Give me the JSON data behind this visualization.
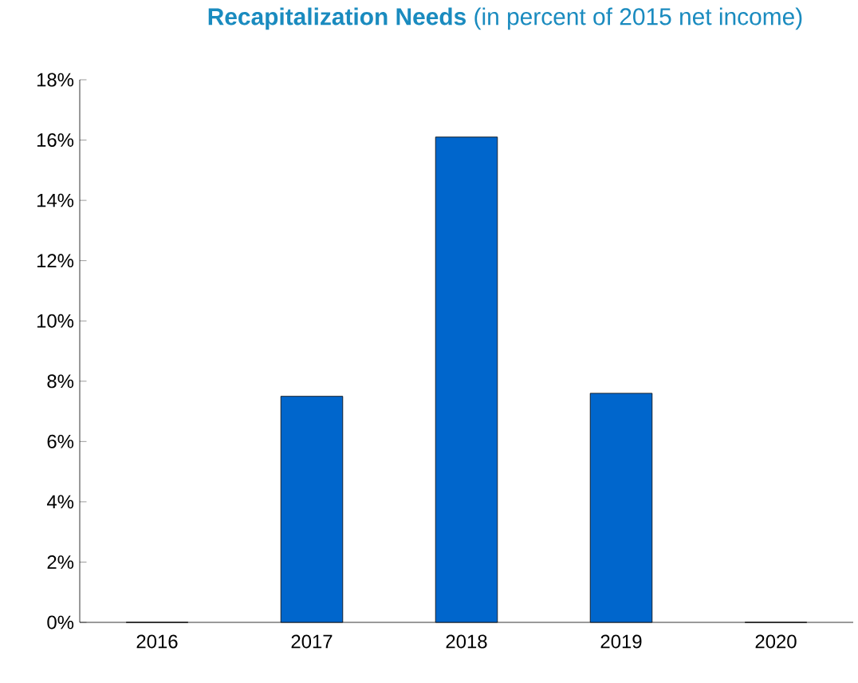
{
  "chart_data": {
    "type": "bar",
    "title": "**Recapitalization Needs** (in percent of 2015 net income)",
    "categories": [
      "2016",
      "2017",
      "2018",
      "2019",
      "2020"
    ],
    "values": [
      0,
      7.5,
      16.1,
      7.6,
      0
    ],
    "color": "#0066cc",
    "ylim": [
      0,
      18
    ],
    "yticks": [
      {
        "value": 0,
        "label": "0%"
      },
      {
        "value": 2,
        "label": "2%"
      },
      {
        "value": 4,
        "label": "4%"
      },
      {
        "value": 6,
        "label": "6%"
      },
      {
        "value": 8,
        "label": "8%"
      },
      {
        "value": 10,
        "label": "10%"
      },
      {
        "value": 12,
        "label": "12%"
      },
      {
        "value": 14,
        "label": "14%"
      },
      {
        "value": 16,
        "label": "16%"
      },
      {
        "value": 18,
        "label": "18%"
      }
    ],
    "grid": false
  }
}
